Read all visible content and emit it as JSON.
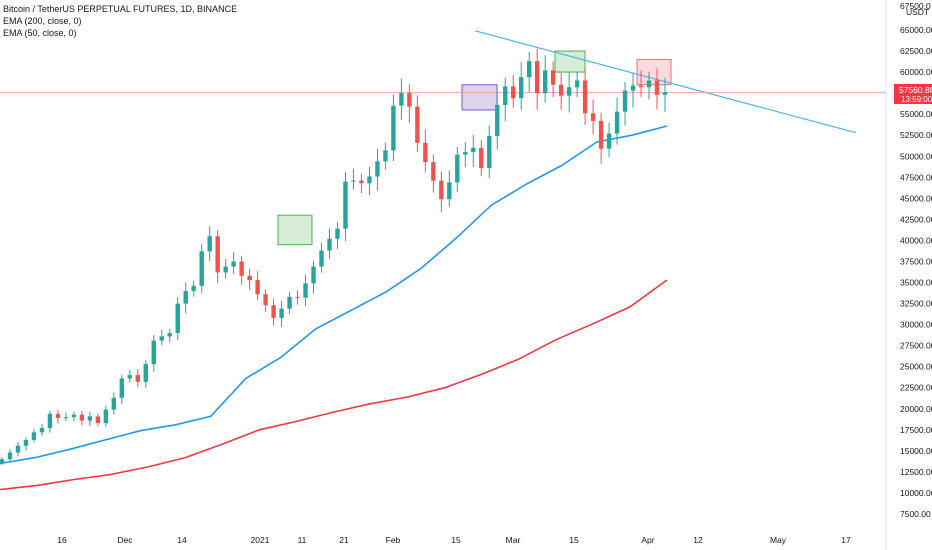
{
  "legend": {
    "symbol": "Bitcoin / TetherUS PERPETUAL FUTURES, 1D, BINANCE",
    "ema200": "EMA (200, close, 0)",
    "ema50": "EMA (50, close, 0)"
  },
  "price_axis": {
    "currency": "USDT",
    "top_label": "67500.0",
    "current_price": "57560.88",
    "countdown": "13:59:00"
  },
  "colors": {
    "up": "#26a69a",
    "down": "#ef5350",
    "ema50": "#2196f3",
    "ema200": "#f23645",
    "trendline": "#4fb3e8",
    "price_line": "#f7a3a3"
  },
  "chart_data": {
    "type": "candlestick",
    "symbol": "Bitcoin / TetherUS PERPETUAL FUTURES",
    "interval": "1D",
    "exchange": "BINANCE",
    "ylim": [
      5000,
      68000
    ],
    "y_ticks": [
      7500,
      10000,
      12500,
      15000,
      17500,
      20000,
      22500,
      25000,
      27500,
      30000,
      32500,
      35000,
      37500,
      40000,
      42500,
      45000,
      47500,
      50000,
      52500,
      55000,
      57500,
      60000,
      62500,
      65000
    ],
    "x_ticks": [
      "16",
      "Dec",
      "14",
      "2021",
      "11",
      "21",
      "Feb",
      "15",
      "Mar",
      "15",
      "Apr",
      "12",
      "May",
      "17"
    ],
    "grid": false,
    "last_price": 57560.88,
    "highlight_boxes": [
      {
        "low": 39500,
        "high": 43000,
        "color": "green"
      },
      {
        "low": 55500,
        "high": 58500,
        "color": "purple"
      },
      {
        "low": 60000,
        "high": 62500,
        "color": "green"
      },
      {
        "low": 58500,
        "high": 61500,
        "color": "red"
      }
    ],
    "trendline": {
      "start": 64900,
      "end": 52800
    },
    "series": [
      {
        "name": "EMA (50, close, 0)",
        "values": [
          13500,
          14200,
          15200,
          16300,
          17400,
          18100,
          19100,
          23600,
          26100,
          29500,
          31700,
          33900,
          36700,
          40300,
          44200,
          46700,
          48900,
          51700,
          52500,
          53600
        ]
      },
      {
        "name": "EMA (200, close, 0)",
        "values": [
          10400,
          10900,
          11600,
          12200,
          13100,
          14200,
          15800,
          17500,
          18500,
          19600,
          20600,
          21400,
          22500,
          24100,
          25900,
          28200,
          30100,
          32100,
          35300
        ]
      },
      {
        "name": "candles",
        "values": [
          14000,
          14800,
          15600,
          16300,
          17200,
          17700,
          19400,
          18900,
          19000,
          19300,
          18600,
          19100,
          18300,
          19900,
          21300,
          23600,
          24000,
          23200,
          25300,
          28100,
          28600,
          29000,
          32500,
          34000,
          34600,
          38700,
          40500,
          36200,
          36900,
          37500,
          35800,
          35300,
          33600,
          32300,
          30800,
          31900,
          33300,
          33200,
          34900,
          36900,
          38800,
          40200,
          41400,
          47000,
          47100,
          46800,
          47600,
          49400,
          50700,
          56000,
          57500,
          55900,
          51600,
          49300,
          47100,
          44900,
          46900,
          50200,
          50500,
          51000,
          48600,
          52400,
          56100,
          58300,
          56900,
          59400,
          61300,
          57500,
          60200,
          58500,
          57200,
          58200,
          59000,
          55100,
          54200,
          50900,
          52700,
          55300,
          57800,
          58400,
          58200,
          59000,
          57300,
          57600
        ]
      }
    ]
  }
}
